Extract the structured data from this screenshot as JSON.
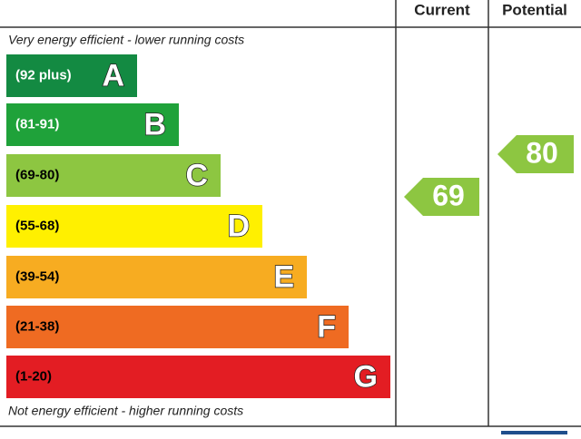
{
  "header": {
    "current": "Current",
    "potential": "Potential"
  },
  "top_note": "Very energy efficient - lower running costs",
  "bottom_note": "Not energy efficient - higher running costs",
  "bands": [
    {
      "range": "(92 plus)",
      "letter": "A",
      "color": "#138a42",
      "text_color": "#ffffff"
    },
    {
      "range": "(81-91)",
      "letter": "B",
      "color": "#1fa23a",
      "text_color": "#ffffff"
    },
    {
      "range": "(69-80)",
      "letter": "C",
      "color": "#8dc641",
      "text_color": "#000000"
    },
    {
      "range": "(55-68)",
      "letter": "D",
      "color": "#fff000",
      "text_color": "#000000"
    },
    {
      "range": "(39-54)",
      "letter": "E",
      "color": "#f7ac21",
      "text_color": "#000000"
    },
    {
      "range": "(21-38)",
      "letter": "F",
      "color": "#ef6b22",
      "text_color": "#000000"
    },
    {
      "range": "(1-20)",
      "letter": "G",
      "color": "#e31d23",
      "text_color": "#000000"
    }
  ],
  "current": {
    "value": "69",
    "color": "#8dc641"
  },
  "potential": {
    "value": "80",
    "color": "#8dc641"
  }
}
